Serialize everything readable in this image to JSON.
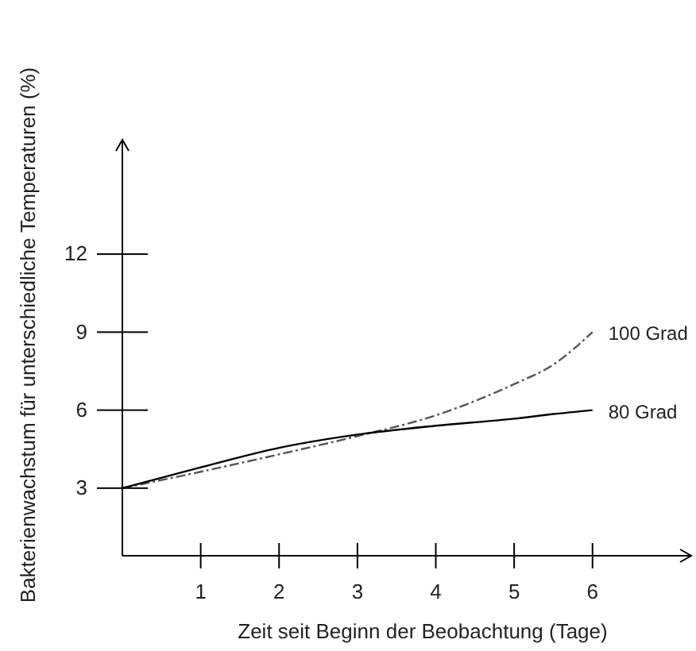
{
  "chart_data": {
    "type": "line",
    "xlabel": "Zeit seit Beginn der Beobachtung (Tage)",
    "ylabel": "Bakterienwachstum  für unterschiedliche Temperaturen (%)",
    "x": [
      0,
      1,
      2,
      3,
      4,
      5,
      5.5,
      6
    ],
    "series": [
      {
        "name": "100 Grad",
        "color": "#555555",
        "line_style": "dashed",
        "values": [
          3,
          3.63,
          4.3,
          5.0,
          5.8,
          7.0,
          7.75,
          9.0
        ]
      },
      {
        "name": "80 Grad",
        "color": "#000000",
        "line_style": "solid",
        "values": [
          3,
          3.8,
          4.55,
          5.06,
          5.4,
          5.67,
          5.85,
          6.0
        ]
      }
    ],
    "xlim": [
      0,
      7.26
    ],
    "ylim": [
      0.4,
      16.4
    ],
    "xticks": [
      1,
      2,
      3,
      4,
      5,
      6
    ],
    "yticks": [
      3,
      6,
      9,
      12
    ],
    "grid": false,
    "legend": false,
    "marker": "none"
  }
}
